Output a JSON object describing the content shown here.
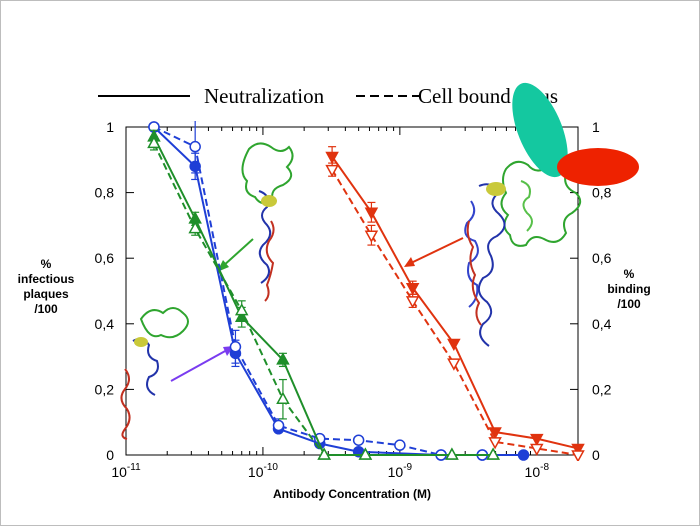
{
  "chart_data": {
    "type": "line",
    "x_scale": "log",
    "xlim": [
      1e-11,
      2e-08
    ],
    "ylim": [
      0,
      1
    ],
    "xlabel": "Antibody  Concentration  (M)",
    "ylabel_left": [
      "%",
      "infectious",
      "plaques",
      "/100"
    ],
    "ylabel_right": [
      "%",
      "binding",
      "/100"
    ],
    "x_ticks": [
      {
        "value": 1e-11,
        "base": "10",
        "exp": "-11"
      },
      {
        "value": 1e-10,
        "base": "10",
        "exp": "-10"
      },
      {
        "value": 1e-09,
        "base": "10",
        "exp": "-9"
      },
      {
        "value": 1e-08,
        "base": "10",
        "exp": "-8"
      }
    ],
    "y_ticks": [
      {
        "value": 0,
        "label": "0"
      },
      {
        "value": 0.2,
        "label": "0,2"
      },
      {
        "value": 0.4,
        "label": "0,4"
      },
      {
        "value": 0.6,
        "label": "0,6"
      },
      {
        "value": 0.8,
        "label": "0,8"
      },
      {
        "value": 1,
        "label": "1"
      }
    ],
    "legend": {
      "position": "top",
      "entries": [
        {
          "label": "Neutralization",
          "style": "solid"
        },
        {
          "label": "Cell bound virus",
          "style": "dashed"
        }
      ]
    },
    "colors": {
      "blue": "#1f3fd6",
      "green": "#1f8f2a",
      "red": "#e0330f",
      "purple": "#7a3cf0",
      "teal": "#14c8a0",
      "red_ellipse": "#ee2200"
    },
    "series": [
      {
        "color": "blue",
        "style": "solid",
        "marker": "circle-filled",
        "points": [
          [
            1.6e-11,
            1.0
          ],
          [
            3.2e-11,
            0.88
          ],
          [
            6.3e-11,
            0.31
          ],
          [
            1.3e-10,
            0.08
          ],
          [
            2.6e-10,
            0.035
          ],
          [
            5e-10,
            0.01
          ],
          [
            2e-09,
            0.0
          ],
          [
            4e-09,
            0.0
          ],
          [
            8e-09,
            0.0
          ]
        ],
        "errors": [
          null,
          0.04,
          0.04,
          null,
          null,
          null,
          null,
          null,
          null
        ]
      },
      {
        "color": "blue",
        "style": "dashed",
        "marker": "circle-open",
        "points": [
          [
            1.6e-11,
            1.0
          ],
          [
            3.2e-11,
            0.94
          ],
          [
            6.3e-11,
            0.33
          ],
          [
            1.3e-10,
            0.09
          ],
          [
            2.6e-10,
            0.05
          ],
          [
            5e-10,
            0.045
          ],
          [
            1e-09,
            0.03
          ],
          [
            2e-09,
            0.0
          ],
          [
            4e-09,
            0.0
          ]
        ],
        "errors": [
          null,
          0.08,
          0.05,
          0.02,
          null,
          null,
          null,
          null,
          null
        ]
      },
      {
        "color": "green",
        "style": "solid",
        "marker": "triangle-up-filled",
        "points": [
          [
            1.6e-11,
            0.97
          ],
          [
            3.2e-11,
            0.72
          ],
          [
            7e-11,
            0.42
          ],
          [
            1.4e-10,
            0.29
          ],
          [
            2.8e-10,
            0.0
          ],
          [
            5.6e-10,
            0.0
          ],
          [
            2.4e-09,
            0.0
          ],
          [
            4.8e-09,
            0.0
          ]
        ],
        "errors": [
          0.02,
          0.02,
          0.03,
          0.02,
          null,
          null,
          null,
          null
        ]
      },
      {
        "color": "green",
        "style": "dashed",
        "marker": "triangle-up-open",
        "points": [
          [
            1.6e-11,
            0.95
          ],
          [
            3.2e-11,
            0.69
          ],
          [
            7e-11,
            0.44
          ],
          [
            1.4e-10,
            0.17
          ],
          [
            2.8e-10,
            0.0
          ],
          [
            5.6e-10,
            0.0
          ],
          [
            2.4e-09,
            0.0
          ],
          [
            4.8e-09,
            0.0
          ]
        ],
        "errors": [
          0.02,
          0.02,
          0.03,
          0.06,
          null,
          null,
          null,
          null
        ]
      },
      {
        "color": "red",
        "style": "solid",
        "marker": "triangle-down-filled",
        "points": [
          [
            3.2e-10,
            0.91
          ],
          [
            6.2e-10,
            0.74
          ],
          [
            1.24e-09,
            0.51
          ],
          [
            2.48e-09,
            0.34
          ],
          [
            4.96e-09,
            0.07
          ],
          [
            1e-08,
            0.05
          ],
          [
            2e-08,
            0.02
          ]
        ],
        "errors": [
          0.03,
          0.03,
          0.02,
          null,
          null,
          null,
          null
        ]
      },
      {
        "color": "red",
        "style": "dashed",
        "marker": "triangle-down-open",
        "points": [
          [
            3.2e-10,
            0.87
          ],
          [
            6.2e-10,
            0.67
          ],
          [
            1.24e-09,
            0.47
          ],
          [
            2.48e-09,
            0.28
          ],
          [
            4.96e-09,
            0.04
          ],
          [
            1e-08,
            0.02
          ],
          [
            2e-08,
            0.0
          ]
        ],
        "errors": [
          0.02,
          0.03,
          0.02,
          null,
          null,
          null,
          null
        ]
      }
    ]
  }
}
